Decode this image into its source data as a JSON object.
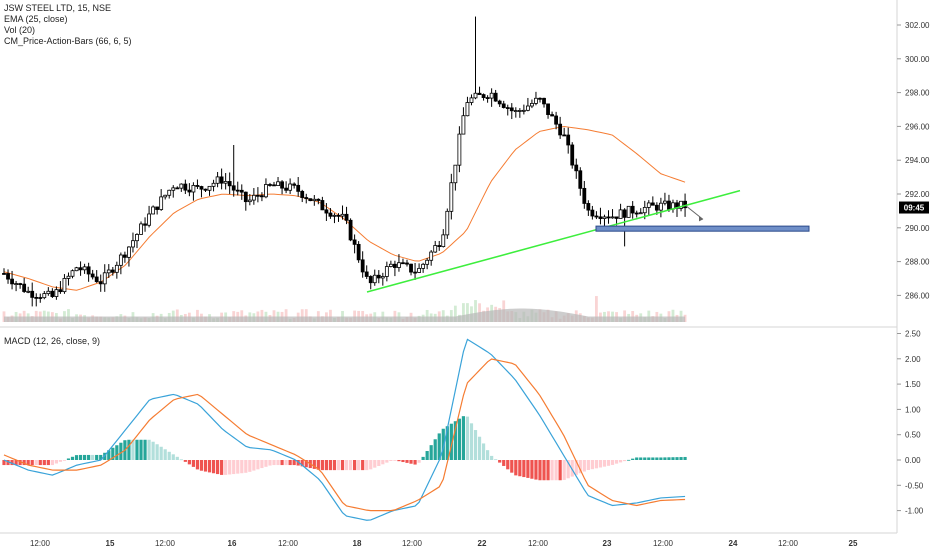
{
  "legend": {
    "symbol": "JSW STEEL LTD, 15, NSE",
    "ema": "EMA (25, close)",
    "vol": "Vol (20)",
    "indicator": "CM_Price-Action-Bars (66, 6, 5)",
    "macd": "MACD (12, 26, close, 9)"
  },
  "price_badge": "09:45",
  "colors": {
    "up": "#ffffff",
    "down": "#000000",
    "ema": "#f57c32",
    "macd": "#3aa3d9",
    "signal": "#f57c32",
    "trendline": "#3dee3d",
    "zone": "#6f8fc8",
    "hist_up_strong": "#26a69a",
    "hist_up_weak": "#b2dfdb",
    "hist_down_strong": "#ef5350",
    "hist_down_weak": "#ffcdd2",
    "volume": "#b8b8b8"
  },
  "chart_data": [
    {
      "type": "candlestick",
      "title": "JSW STEEL LTD, 15, NSE",
      "ylim": [
        284.5,
        303
      ],
      "y_ticks": [
        "302.00",
        "300.00",
        "298.00",
        "296.00",
        "294.00",
        "292.00",
        "290.00",
        "288.00",
        "286.00"
      ],
      "x_tick_labels": [
        "12:00",
        "15",
        "12:00",
        "16",
        "12:00",
        "18",
        "12:00",
        "22",
        "12:00",
        "23",
        "12:00",
        "24",
        "12:00",
        "25"
      ],
      "series": [
        {
          "name": "EMA (25, close)",
          "values": [
            287.4,
            287.0,
            286.5,
            286.3,
            286.8,
            287.8,
            289.5,
            290.9,
            291.7,
            292.0,
            291.9,
            292.0,
            291.9,
            291.5,
            290.5,
            289.2,
            288.4,
            288.0,
            288.5,
            289.8,
            292.7,
            294.6,
            295.7,
            296.0,
            295.8,
            295.5,
            294.4,
            293.2,
            292.7
          ]
        }
      ],
      "close_approx": [
        287.3,
        286.2,
        285.9,
        287.7,
        286.8,
        288.6,
        290.8,
        292.6,
        292.3,
        292.9,
        291.5,
        292.5,
        292.3,
        291.3,
        290.5,
        286.6,
        287.9,
        287.4,
        289.4,
        297.5,
        298.0,
        296.8,
        297.6,
        295.5,
        291.0,
        290.7,
        291.1,
        291.3,
        291.3
      ],
      "annotations": {
        "trendline": {
          "from": 286.2,
          "to": 292.2
        },
        "support_zone": [
          290.1,
          289.8
        ]
      }
    },
    {
      "type": "bar",
      "title": "Vol (20)"
    },
    {
      "type": "line+bar",
      "title": "MACD (12, 26, close, 9)",
      "ylim": [
        -1.45,
        2.6
      ],
      "y_ticks": [
        "2.50",
        "2.00",
        "1.50",
        "1.00",
        "0.50",
        "0.00",
        "-0.50",
        "-1.00"
      ],
      "series": [
        {
          "name": "MACD",
          "values": [
            0.0,
            -0.2,
            -0.3,
            -0.1,
            0.0,
            0.6,
            1.2,
            1.3,
            1.1,
            0.6,
            0.25,
            0.2,
            0.0,
            -0.4,
            -1.1,
            -1.2,
            -1.0,
            -0.9,
            0.1,
            2.4,
            2.1,
            1.6,
            0.9,
            0.1,
            -0.7,
            -0.9,
            -0.85,
            -0.75,
            -0.72
          ]
        },
        {
          "name": "Signal",
          "values": [
            0.1,
            -0.1,
            -0.2,
            -0.2,
            -0.1,
            0.2,
            0.8,
            1.2,
            1.3,
            0.9,
            0.5,
            0.3,
            0.1,
            -0.2,
            -0.9,
            -1.0,
            -1.0,
            -0.8,
            -0.5,
            1.5,
            2.0,
            1.9,
            1.3,
            0.5,
            -0.5,
            -0.8,
            -0.9,
            -0.8,
            -0.78
          ]
        }
      ]
    }
  ]
}
